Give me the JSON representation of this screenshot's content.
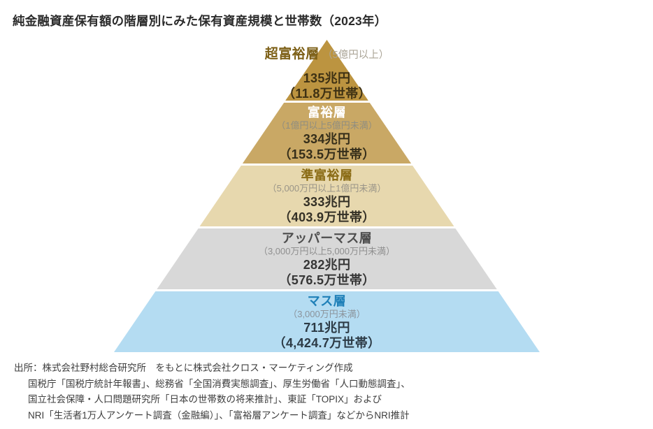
{
  "title": "純金融資産保有額の階層別にみた保有資産規模と世帯数（2023年）",
  "chart_data": {
    "type": "pyramid",
    "title": "純金融資産保有額の階層別にみた保有資産規模と世帯数（2023年）",
    "year": "2023年",
    "unit_assets": "兆円",
    "unit_households": "万世帯",
    "tiers": [
      {
        "name": "超富裕層",
        "range": "（5億円以上）",
        "assets": "135兆円",
        "assets_trillion_yen": 135,
        "households": "（11.8万世帯）",
        "households_10k": 11.8,
        "color": "#bc9440",
        "name_color": "#7d6017",
        "range_color": "#aba597",
        "value_color": "#3e3113"
      },
      {
        "name": "富裕層",
        "range": "（1億円以上5億円未満）",
        "assets": "334兆円",
        "assets_trillion_yen": 334,
        "households": "（153.5万世帯）",
        "households_10k": 153.5,
        "color": "#c9a865",
        "name_color": "#ffffff",
        "range_color": "#8f8d80",
        "value_color": "#352e1a"
      },
      {
        "name": "準富裕層",
        "range": "（5,000万円以上1億円未満）",
        "assets": "333兆円",
        "assets_trillion_yen": 333,
        "households": "（403.9万世帯）",
        "households_10k": 403.9,
        "color": "#e7d8ae",
        "name_color": "#8a6b14",
        "range_color": "#9a9588",
        "value_color": "#343026"
      },
      {
        "name": "アッパーマス層",
        "range": "（3,000万円以上5,000万円未満）",
        "assets": "282兆円",
        "assets_trillion_yen": 282,
        "households": "（576.5万世帯）",
        "households_10k": 576.5,
        "color": "#d8d8d8",
        "name_color": "#4d4d4d",
        "range_color": "#8f8f8f",
        "value_color": "#363636"
      },
      {
        "name": "マス層",
        "range": "（3,000万円未満）",
        "assets": "711兆円",
        "assets_trillion_yen": 711,
        "households": "（4,424.7万世帯）",
        "households_10k": 4424.7,
        "color": "#b4dcf2",
        "name_color": "#1f80b8",
        "range_color": "#8b939b",
        "value_color": "#2c3a45"
      }
    ]
  },
  "source": {
    "lines": [
      "出所：株式会社野村総合研究所　をもとに株式会社クロス・マーケティング作成",
      "国税庁「国税庁統計年報書」、総務省「全国消費実態調査」、厚生労働省「人口動態調査」、",
      "国立社会保障・人口問題研究所「日本の世帯数の将来推計」、東証「TOPIX」および",
      "NRI「生活者1万人アンケート調査（金融編）」、「富裕層アンケート調査」などからNRI推計"
    ]
  }
}
